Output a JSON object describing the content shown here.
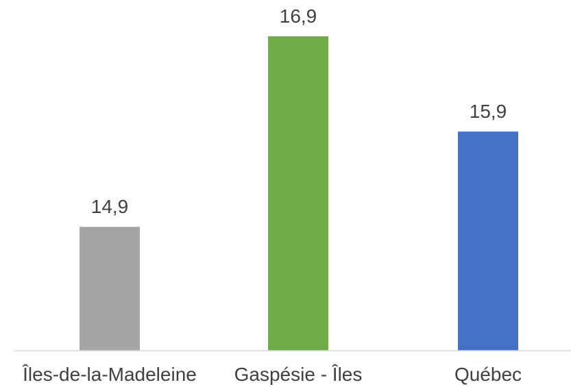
{
  "chart_data": {
    "type": "bar",
    "categories": [
      "Îles-de-la-Madeleine",
      "Gaspésie - Îles",
      "Québec"
    ],
    "values": [
      14.9,
      16.9,
      15.9
    ],
    "value_labels": [
      "14,9",
      "16,9",
      "15,9"
    ],
    "colors": [
      "#a5a5a5",
      "#70ad47",
      "#4472c4"
    ],
    "ylim": [
      13.6,
      16.9
    ],
    "grid": false,
    "legend": "none"
  }
}
